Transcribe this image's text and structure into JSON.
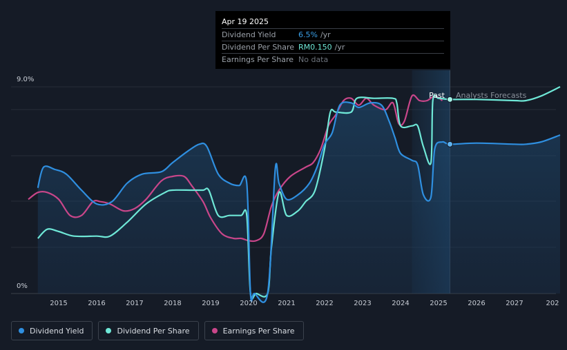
{
  "tooltip": {
    "date": "Apr 19 2025",
    "rows": [
      {
        "label": "Dividend Yield",
        "value": "6.5%",
        "unit": "/yr"
      },
      {
        "label": "Dividend Per Share",
        "value": "RM0.150",
        "unit": "/yr"
      },
      {
        "label": "Earnings Per Share",
        "value": "No data",
        "unit": ""
      }
    ]
  },
  "chart_data": {
    "type": "line",
    "y_ticks": [
      "9.0%",
      "0%"
    ],
    "x_ticks": [
      "2015",
      "2016",
      "2017",
      "2018",
      "2019",
      "2020",
      "2021",
      "2022",
      "2023",
      "2024",
      "2025",
      "2026",
      "2027",
      "202"
    ],
    "annotations": {
      "past": "Past",
      "forecast": "Analysts Forecasts"
    },
    "ylim": [
      0,
      9.0
    ],
    "grid": true,
    "colors": {
      "dividend_yield": "#2f8fe0",
      "dividend_per_share": "#6fe8d7",
      "earnings_per_share": "#c9468a"
    },
    "series": [
      {
        "name": "Dividend Yield",
        "x": [
          2014.45,
          2014.6,
          2014.9,
          2015.2,
          2015.6,
          2016.0,
          2016.4,
          2016.8,
          2017.2,
          2017.7,
          2018.0,
          2018.4,
          2018.7,
          2018.9,
          2019.2,
          2019.5,
          2019.75,
          2019.95,
          2020.05,
          2020.15,
          2020.5,
          2020.7,
          2020.8,
          2021.0,
          2021.3,
          2021.6,
          2021.8,
          2022.0,
          2022.2,
          2022.4,
          2022.7,
          2022.9,
          2023.2,
          2023.5,
          2023.7,
          2023.85,
          2024.0,
          2024.3,
          2024.45,
          2024.6,
          2024.8,
          2024.9,
          2025.1,
          2025.3,
          2026.0,
          2027.0,
          2027.3,
          2027.7,
          2028.2
        ],
        "values": [
          4.6,
          5.5,
          5.4,
          5.2,
          4.5,
          3.9,
          4.0,
          4.8,
          5.2,
          5.3,
          5.7,
          6.2,
          6.5,
          6.4,
          5.2,
          4.8,
          4.7,
          4.8,
          0.0,
          0.0,
          0.0,
          5.4,
          4.8,
          4.1,
          4.3,
          4.8,
          5.5,
          6.5,
          7.0,
          8.2,
          8.3,
          8.1,
          8.3,
          8.2,
          7.5,
          6.8,
          6.1,
          5.8,
          5.6,
          4.3,
          4.2,
          6.3,
          6.6,
          6.5,
          6.55,
          6.5,
          6.5,
          6.6,
          6.9
        ]
      },
      {
        "name": "Dividend Per Share",
        "x": [
          2014.45,
          2014.7,
          2015.0,
          2015.4,
          2016.0,
          2016.35,
          2016.8,
          2017.3,
          2017.8,
          2018.0,
          2018.5,
          2018.8,
          2018.95,
          2019.2,
          2019.5,
          2019.8,
          2019.95,
          2020.05,
          2020.2,
          2020.5,
          2020.6,
          2020.8,
          2021.0,
          2021.3,
          2021.5,
          2021.75,
          2022.0,
          2022.15,
          2022.3,
          2022.7,
          2022.85,
          2023.3,
          2023.8,
          2023.9,
          2024.0,
          2024.3,
          2024.45,
          2024.6,
          2024.8,
          2024.85,
          2025.0,
          2025.3,
          2026.0,
          2027.0,
          2027.3,
          2027.7,
          2028.2
        ],
        "values": [
          2.4,
          2.8,
          2.7,
          2.5,
          2.5,
          2.5,
          3.1,
          3.9,
          4.4,
          4.5,
          4.5,
          4.5,
          4.5,
          3.4,
          3.4,
          3.4,
          3.4,
          0.0,
          0.0,
          0.0,
          2.0,
          4.4,
          3.4,
          3.6,
          4.0,
          4.5,
          6.3,
          7.9,
          7.9,
          7.9,
          8.5,
          8.5,
          8.5,
          8.3,
          7.3,
          7.3,
          7.3,
          6.4,
          5.7,
          8.4,
          8.5,
          8.45,
          8.45,
          8.4,
          8.4,
          8.6,
          9.0
        ]
      },
      {
        "name": "Earnings Per Share",
        "x": [
          2014.2,
          2014.45,
          2014.7,
          2015.0,
          2015.3,
          2015.6,
          2015.9,
          2016.1,
          2016.35,
          2016.7,
          2017.0,
          2017.3,
          2017.7,
          2018.0,
          2018.3,
          2018.5,
          2018.8,
          2019.0,
          2019.3,
          2019.6,
          2019.8,
          2020.0,
          2020.2,
          2020.4,
          2020.6,
          2020.8,
          2021.1,
          2021.5,
          2021.7,
          2021.9,
          2022.1,
          2022.3,
          2022.5,
          2022.7,
          2022.9,
          2023.1,
          2023.3,
          2023.6,
          2023.8,
          2023.95,
          2024.1,
          2024.3,
          2024.5,
          2024.7,
          2024.9,
          2025.1
        ],
        "values": [
          4.1,
          4.4,
          4.4,
          4.1,
          3.4,
          3.4,
          4.0,
          4.0,
          3.9,
          3.6,
          3.7,
          4.1,
          4.9,
          5.1,
          5.1,
          4.7,
          4.0,
          3.3,
          2.6,
          2.4,
          2.4,
          2.3,
          2.3,
          2.6,
          3.8,
          4.5,
          5.1,
          5.5,
          5.7,
          6.3,
          7.3,
          7.8,
          8.4,
          8.5,
          8.2,
          8.5,
          8.2,
          8.0,
          8.3,
          7.4,
          7.5,
          8.6,
          8.4,
          8.4,
          8.6,
          8.4
        ]
      }
    ]
  },
  "legend": [
    {
      "label": "Dividend Yield",
      "color": "#2f8fe0"
    },
    {
      "label": "Dividend Per Share",
      "color": "#6fe8d7"
    },
    {
      "label": "Earnings Per Share",
      "color": "#c9468a"
    }
  ]
}
